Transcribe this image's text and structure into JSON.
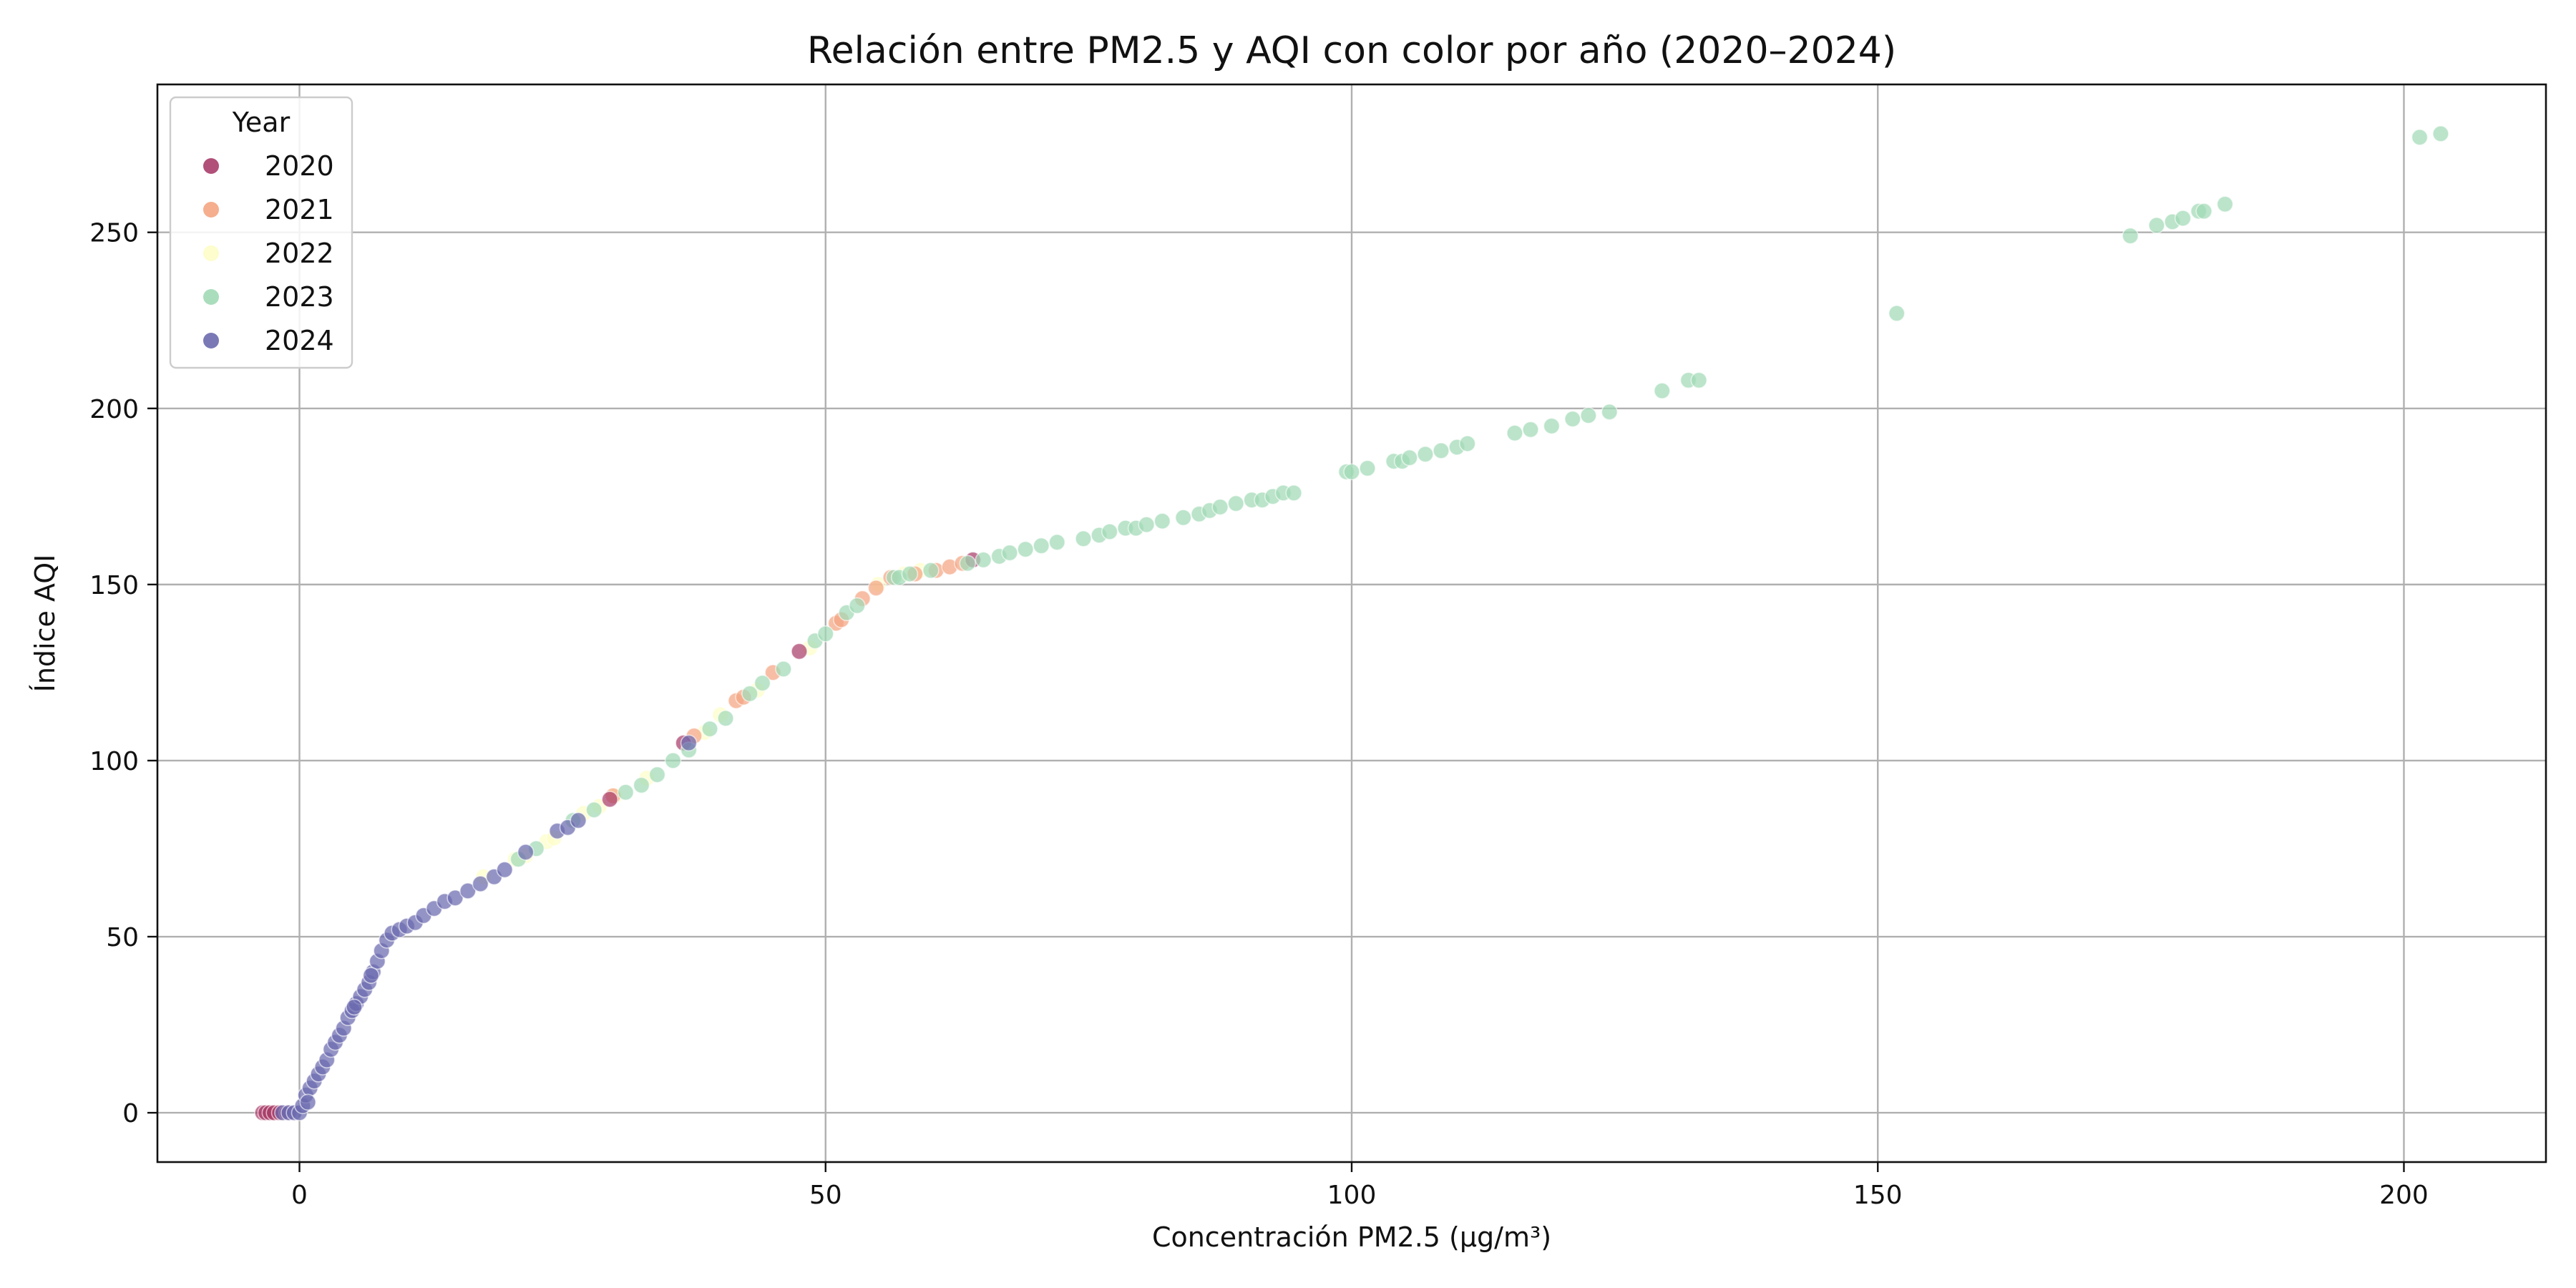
{
  "chart_data": {
    "type": "scatter",
    "title": "Relación entre PM2.5 y AQI con color por año (2020–2024)",
    "xlabel": "Concentración PM2.5 (µg/m³)",
    "ylabel": "Índice AQI",
    "xlim": [
      -13.5,
      213.5
    ],
    "ylim": [
      -14,
      292
    ],
    "xticks": [
      0,
      50,
      100,
      150,
      200
    ],
    "yticks": [
      0,
      50,
      100,
      150,
      200,
      250
    ],
    "grid": true,
    "legend": {
      "title": "Year",
      "placement": "top-left"
    },
    "series": [
      {
        "name": "2020",
        "color": "#a93d6a",
        "points": [
          [
            -3.5,
            0
          ],
          [
            -3.2,
            0
          ],
          [
            -2.8,
            0
          ],
          [
            -2.4,
            0
          ],
          [
            -1.9,
            0
          ],
          [
            -1.2,
            0
          ],
          [
            36.5,
            105
          ],
          [
            47.5,
            131
          ],
          [
            64,
            157
          ],
          [
            29.5,
            89
          ]
        ]
      },
      {
        "name": "2021",
        "color": "#f4a582",
        "points": [
          [
            -2.6,
            0
          ],
          [
            -2.1,
            0
          ],
          [
            29.8,
            90
          ],
          [
            37.5,
            107
          ],
          [
            41.5,
            117
          ],
          [
            42.2,
            118
          ],
          [
            51,
            139
          ],
          [
            51.5,
            140
          ],
          [
            53.5,
            146
          ],
          [
            54.8,
            149
          ],
          [
            56.2,
            152
          ],
          [
            60.5,
            154
          ],
          [
            61.8,
            155
          ],
          [
            63,
            156
          ],
          [
            45,
            125
          ],
          [
            58.5,
            153
          ]
        ]
      },
      {
        "name": "2022",
        "color": "#fdfdc8",
        "points": [
          [
            17.5,
            67
          ],
          [
            20.5,
            72
          ],
          [
            21.5,
            73
          ],
          [
            23.5,
            77
          ],
          [
            24.2,
            78
          ],
          [
            27,
            85
          ],
          [
            28.5,
            87
          ],
          [
            30,
            90
          ],
          [
            33,
            95
          ],
          [
            38.5,
            108
          ],
          [
            40,
            113
          ],
          [
            43.5,
            120
          ],
          [
            48.5,
            132
          ],
          [
            55,
            150
          ],
          [
            57.5,
            153
          ],
          [
            59,
            154
          ]
        ]
      },
      {
        "name": "2023",
        "color": "#a1d9b5",
        "points": [
          [
            20.8,
            72
          ],
          [
            22.5,
            75
          ],
          [
            26,
            83
          ],
          [
            28,
            86
          ],
          [
            31,
            91
          ],
          [
            32.5,
            93
          ],
          [
            34,
            96
          ],
          [
            35.5,
            100
          ],
          [
            37,
            103
          ],
          [
            39,
            109
          ],
          [
            40.5,
            112
          ],
          [
            42.8,
            119
          ],
          [
            44,
            122
          ],
          [
            46,
            126
          ],
          [
            49,
            134
          ],
          [
            50,
            136
          ],
          [
            52,
            142
          ],
          [
            53,
            144
          ],
          [
            56.5,
            152
          ],
          [
            57,
            152
          ],
          [
            58,
            153
          ],
          [
            60,
            154
          ],
          [
            63.5,
            156
          ],
          [
            65,
            157
          ],
          [
            66.5,
            158
          ],
          [
            67.5,
            159
          ],
          [
            69,
            160
          ],
          [
            70.5,
            161
          ],
          [
            72,
            162
          ],
          [
            74.5,
            163
          ],
          [
            76,
            164
          ],
          [
            77,
            165
          ],
          [
            78.5,
            166
          ],
          [
            79.5,
            166
          ],
          [
            80.5,
            167
          ],
          [
            82,
            168
          ],
          [
            84,
            169
          ],
          [
            85.5,
            170
          ],
          [
            86.5,
            171
          ],
          [
            87.5,
            172
          ],
          [
            89,
            173
          ],
          [
            90.5,
            174
          ],
          [
            91.5,
            174
          ],
          [
            92.5,
            175
          ],
          [
            93.5,
            176
          ],
          [
            94.5,
            176
          ],
          [
            99.5,
            182
          ],
          [
            100,
            182
          ],
          [
            101.5,
            183
          ],
          [
            104,
            185
          ],
          [
            104.8,
            185
          ],
          [
            105.5,
            186
          ],
          [
            107,
            187
          ],
          [
            108.5,
            188
          ],
          [
            110,
            189
          ],
          [
            111,
            190
          ],
          [
            115.5,
            193
          ],
          [
            117,
            194
          ],
          [
            119,
            195
          ],
          [
            121,
            197
          ],
          [
            122.5,
            198
          ],
          [
            124.5,
            199
          ],
          [
            129.5,
            205
          ],
          [
            132,
            208
          ],
          [
            133,
            208
          ],
          [
            151.8,
            227
          ],
          [
            174,
            249
          ],
          [
            176.5,
            252
          ],
          [
            178,
            253
          ],
          [
            179,
            254
          ],
          [
            180.5,
            256
          ],
          [
            181,
            256
          ],
          [
            183,
            258
          ],
          [
            201.5,
            277
          ],
          [
            203.5,
            278
          ]
        ]
      },
      {
        "name": "2024",
        "color": "#6b6aae",
        "points": [
          [
            -1.6,
            0
          ],
          [
            -1.0,
            0
          ],
          [
            -0.5,
            0
          ],
          [
            0,
            0
          ],
          [
            0.3,
            2
          ],
          [
            0.6,
            5
          ],
          [
            1,
            7
          ],
          [
            1.4,
            9
          ],
          [
            1.8,
            11
          ],
          [
            2.2,
            13
          ],
          [
            2.6,
            15
          ],
          [
            3,
            18
          ],
          [
            3.4,
            20
          ],
          [
            3.8,
            22
          ],
          [
            4.2,
            24
          ],
          [
            4.6,
            27
          ],
          [
            5,
            29
          ],
          [
            5.4,
            31
          ],
          [
            5.8,
            33
          ],
          [
            6.2,
            35
          ],
          [
            6.6,
            37
          ],
          [
            7,
            40
          ],
          [
            7.4,
            43
          ],
          [
            7.8,
            46
          ],
          [
            8.3,
            49
          ],
          [
            8.8,
            51
          ],
          [
            9.5,
            52
          ],
          [
            10.2,
            53
          ],
          [
            11,
            54
          ],
          [
            11.8,
            56
          ],
          [
            12.8,
            58
          ],
          [
            13.8,
            60
          ],
          [
            14.8,
            61
          ],
          [
            16,
            63
          ],
          [
            17.2,
            65
          ],
          [
            18.5,
            67
          ],
          [
            19.5,
            69
          ],
          [
            21.5,
            74
          ],
          [
            24.5,
            80
          ],
          [
            25.5,
            81
          ],
          [
            26.5,
            83
          ],
          [
            37,
            105
          ],
          [
            0.8,
            3
          ],
          [
            5.2,
            30
          ],
          [
            6.8,
            39
          ]
        ]
      }
    ]
  }
}
